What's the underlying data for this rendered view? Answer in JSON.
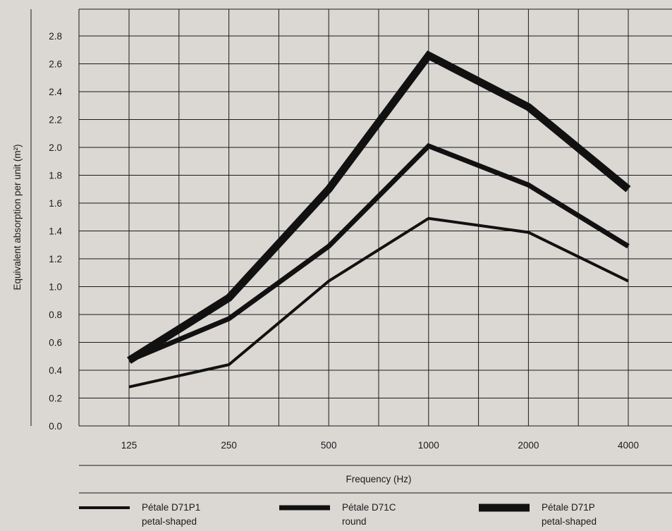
{
  "chart_data": {
    "type": "line",
    "ylabel": "Equivalent absorption per unit (m²)",
    "xlabel": "Frequency (Hz)",
    "categories": [
      "125",
      "250",
      "500",
      "1000",
      "2000",
      "4000"
    ],
    "yticks": [
      "0.0",
      "0.2",
      "0.4",
      "0.6",
      "0.8",
      "1.0",
      "1.2",
      "1.4",
      "1.6",
      "1.8",
      "2.0",
      "2.2",
      "2.4",
      "2.6",
      "2.8"
    ],
    "ylim": [
      0,
      2.9
    ],
    "grid": true,
    "legend_position": "bottom",
    "series": [
      {
        "name": "Pétale D71P1",
        "name_line2": "petal-shaped",
        "values": [
          0.28,
          0.44,
          1.04,
          1.49,
          1.39,
          1.04
        ],
        "stroke": "thin"
      },
      {
        "name": "Pétale D71C",
        "name_line2": "round",
        "values": [
          0.47,
          0.77,
          1.29,
          2.01,
          1.73,
          1.29
        ],
        "stroke": "medium"
      },
      {
        "name": "Pétale D71P",
        "name_line2": "petal-shaped",
        "values": [
          0.47,
          0.92,
          1.7,
          2.66,
          2.29,
          1.7
        ],
        "stroke": "thick"
      }
    ],
    "colors": {
      "background": "#dbd8d4",
      "line": "#111111",
      "grid": "#1a1a1a"
    }
  }
}
